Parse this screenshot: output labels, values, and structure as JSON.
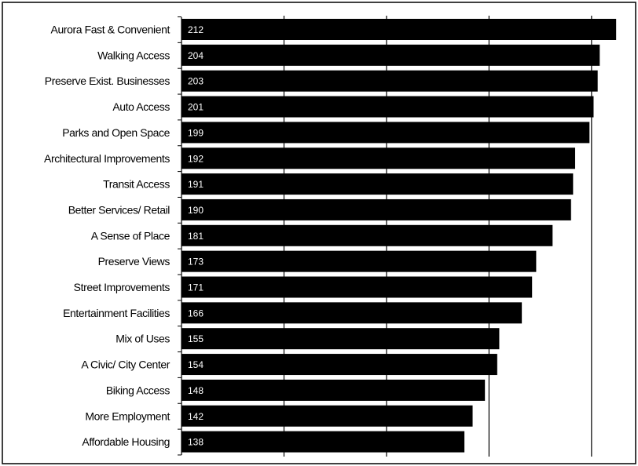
{
  "chart_data": {
    "type": "bar",
    "orientation": "horizontal",
    "categories": [
      "Aurora Fast & Convenient",
      "Walking Access",
      "Preserve Exist. Businesses",
      "Auto Access",
      "Parks and Open Space",
      "Architectural Improvements",
      "Transit Access",
      "Better Services/ Retail",
      "A Sense of Place",
      "Preserve Views",
      "Street Improvements",
      "Entertainment Facilities",
      "Mix of Uses",
      "A Civic/ City Center",
      "Biking Access",
      "More Employment",
      "Affordable Housing"
    ],
    "values": [
      212,
      204,
      203,
      201,
      199,
      192,
      191,
      190,
      181,
      173,
      171,
      166,
      155,
      154,
      148,
      142,
      138
    ],
    "value_labels": [
      "212",
      "204",
      "203",
      "201",
      "199",
      "192",
      "191",
      "190",
      "181",
      "173",
      "171",
      "166",
      "155",
      "154",
      "148",
      "142",
      "138"
    ],
    "xlim": [
      0,
      215
    ],
    "grid": true,
    "bar_color": "#000000",
    "value_label_color": "#ffffff"
  }
}
